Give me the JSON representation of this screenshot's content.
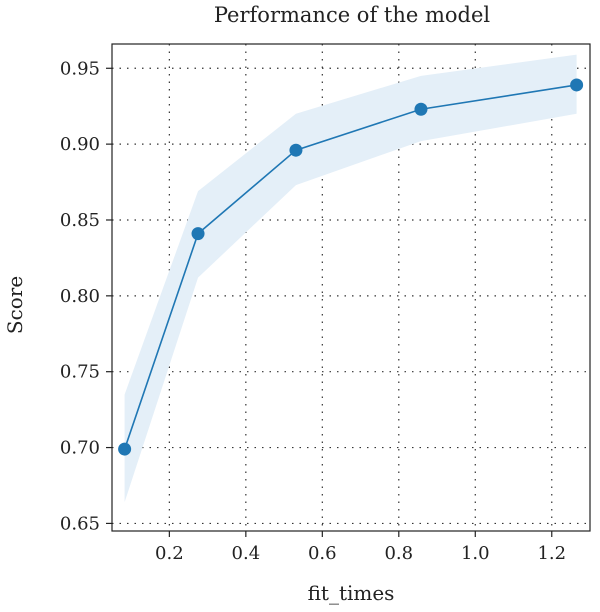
{
  "chart_data": {
    "type": "line",
    "title": "Performance of the model",
    "xlabel": "fit_times",
    "ylabel": "Score",
    "xlim": [
      0.05,
      1.3
    ],
    "ylim": [
      0.645,
      0.966
    ],
    "xticks": [
      0.2,
      0.4,
      0.6,
      0.8,
      1.0,
      1.2
    ],
    "xtick_labels": [
      "0.2",
      "0.4",
      "0.6",
      "0.8",
      "1.0",
      "1.2"
    ],
    "yticks": [
      0.65,
      0.7,
      0.75,
      0.8,
      0.85,
      0.9,
      0.95
    ],
    "ytick_labels": [
      "0.65",
      "0.70",
      "0.75",
      "0.80",
      "0.85",
      "0.90",
      "0.95"
    ],
    "grid": true,
    "series": [
      {
        "x": [
          0.083,
          0.275,
          0.531,
          0.858,
          1.265
        ],
        "y": [
          0.699,
          0.841,
          0.896,
          0.923,
          0.939
        ],
        "lower": [
          0.664,
          0.812,
          0.873,
          0.902,
          0.92
        ],
        "upper": [
          0.735,
          0.869,
          0.92,
          0.945,
          0.959
        ],
        "color": "#1f77b4",
        "band_color": "#e4eff8"
      }
    ]
  }
}
